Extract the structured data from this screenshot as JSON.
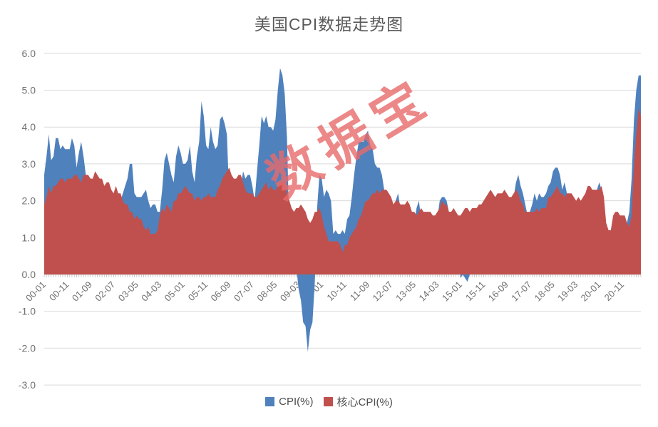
{
  "title": {
    "text": "美国CPI数据走势图"
  },
  "watermark": {
    "text": "数据宝",
    "color": "rgba(231,106,106,0.8)"
  },
  "legend": {
    "position": "bottom",
    "items": [
      {
        "label": "CPI(%)",
        "color": "#4f81bd"
      },
      {
        "label": "核心CPI(%)",
        "color": "#c0504d"
      }
    ]
  },
  "chart_data": {
    "type": "area",
    "title": "美国CPI数据走势图",
    "x_start_month": "2000-01",
    "x_end_month": "2021-07",
    "x_tick_interval_months": 10,
    "x_tick_labels": [
      "00-01",
      "00-11",
      "01-09",
      "02-07",
      "03-05",
      "04-03",
      "05-01",
      "05-11",
      "06-09",
      "07-07",
      "08-05",
      "09-03",
      "10-01",
      "10-11",
      "11-09",
      "12-07",
      "13-05",
      "14-03",
      "15-01",
      "15-11",
      "16-09",
      "17-07",
      "18-05",
      "19-03",
      "20-01",
      "20-11"
    ],
    "ylim": [
      -3.0,
      6.0
    ],
    "y_ticks": [
      6,
      5,
      4,
      3,
      2,
      1,
      0,
      -1,
      -2,
      -3
    ],
    "grid": true,
    "legend_position": "bottom",
    "grid_color": "#d9d9d9",
    "axis_color": "#bdbdbd",
    "axis_text_color": "#6f6f6f",
    "series": [
      {
        "name": "CPI(%)",
        "color": "#4f81bd",
        "values": [
          2.7,
          3.2,
          3.8,
          3.1,
          3.2,
          3.7,
          3.7,
          3.4,
          3.5,
          3.4,
          3.4,
          3.4,
          3.7,
          3.5,
          2.9,
          3.3,
          3.6,
          3.2,
          2.7,
          2.7,
          2.6,
          2.1,
          1.9,
          1.6,
          1.1,
          1.1,
          1.5,
          1.6,
          1.2,
          1.1,
          1.5,
          1.8,
          1.5,
          2.0,
          2.2,
          2.4,
          2.6,
          3.0,
          3.0,
          2.2,
          2.1,
          2.1,
          2.1,
          2.2,
          2.3,
          2.0,
          1.8,
          1.9,
          1.9,
          1.7,
          1.7,
          2.3,
          3.1,
          3.3,
          3.0,
          2.7,
          2.5,
          3.2,
          3.5,
          3.3,
          3.0,
          3.0,
          3.1,
          3.5,
          2.8,
          2.5,
          3.2,
          3.6,
          4.7,
          4.3,
          3.5,
          3.4,
          4.0,
          3.6,
          3.4,
          3.5,
          4.2,
          4.3,
          4.1,
          3.8,
          2.1,
          1.3,
          2.0,
          2.5,
          2.1,
          2.4,
          2.8,
          2.6,
          2.7,
          2.7,
          2.4,
          2.0,
          2.8,
          3.5,
          4.3,
          4.1,
          4.3,
          4.0,
          4.0,
          3.9,
          4.2,
          5.0,
          5.6,
          5.4,
          4.9,
          3.7,
          1.1,
          0.1,
          0.0,
          0.2,
          -0.4,
          -0.7,
          -1.3,
          -1.4,
          -2.1,
          -1.5,
          -1.3,
          -0.2,
          1.8,
          2.7,
          2.6,
          2.1,
          2.3,
          2.2,
          2.0,
          1.1,
          1.2,
          1.1,
          1.1,
          1.2,
          1.1,
          1.5,
          1.6,
          2.1,
          2.7,
          3.2,
          3.6,
          3.6,
          3.6,
          3.8,
          3.9,
          3.5,
          3.4,
          3.0,
          2.9,
          2.9,
          2.7,
          2.3,
          1.7,
          1.7,
          1.4,
          1.7,
          2.0,
          2.2,
          1.8,
          1.7,
          1.6,
          2.0,
          1.5,
          1.1,
          1.4,
          1.8,
          2.0,
          1.5,
          1.2,
          1.0,
          1.2,
          1.5,
          1.6,
          1.1,
          1.5,
          2.0,
          2.1,
          2.1,
          2.0,
          1.7,
          1.7,
          1.7,
          1.3,
          0.8,
          -0.1,
          0.0,
          -0.1,
          -0.2,
          0.0,
          0.1,
          0.2,
          0.2,
          0.0,
          0.2,
          0.5,
          0.7,
          1.4,
          1.0,
          0.9,
          1.1,
          1.0,
          1.0,
          0.8,
          1.1,
          1.5,
          1.6,
          1.7,
          2.1,
          2.5,
          2.7,
          2.4,
          2.2,
          1.9,
          1.6,
          1.7,
          1.9,
          2.2,
          2.0,
          2.2,
          2.1,
          2.1,
          2.2,
          2.4,
          2.5,
          2.8,
          2.9,
          2.9,
          2.7,
          2.3,
          2.5,
          2.2,
          1.9,
          1.6,
          1.5,
          1.9,
          2.0,
          1.8,
          1.6,
          1.8,
          1.7,
          1.7,
          1.8,
          2.1,
          2.3,
          2.5,
          2.3,
          1.5,
          0.3,
          0.1,
          0.6,
          1.0,
          1.3,
          1.4,
          1.2,
          1.2,
          1.4,
          1.4,
          1.7,
          2.6,
          4.2,
          5.0,
          5.4,
          5.4
        ]
      },
      {
        "name": "核心CPI(%)",
        "color": "#c0504d",
        "values": [
          1.9,
          2.1,
          2.4,
          2.2,
          2.4,
          2.4,
          2.5,
          2.6,
          2.6,
          2.5,
          2.6,
          2.6,
          2.6,
          2.7,
          2.7,
          2.6,
          2.5,
          2.7,
          2.7,
          2.7,
          2.6,
          2.6,
          2.8,
          2.7,
          2.6,
          2.6,
          2.4,
          2.5,
          2.5,
          2.3,
          2.2,
          2.4,
          2.2,
          2.2,
          2.0,
          1.9,
          1.9,
          1.7,
          1.7,
          1.5,
          1.6,
          1.5,
          1.5,
          1.3,
          1.2,
          1.3,
          1.1,
          1.1,
          1.1,
          1.2,
          1.6,
          1.8,
          1.7,
          1.9,
          1.8,
          1.7,
          2.0,
          2.0,
          2.2,
          2.2,
          2.3,
          2.4,
          2.3,
          2.2,
          2.2,
          2.0,
          2.1,
          2.1,
          2.0,
          2.1,
          2.1,
          2.2,
          2.1,
          2.1,
          2.1,
          2.3,
          2.4,
          2.6,
          2.7,
          2.8,
          2.9,
          2.7,
          2.6,
          2.6,
          2.7,
          2.7,
          2.5,
          2.3,
          2.2,
          2.2,
          2.2,
          2.1,
          2.1,
          2.2,
          2.3,
          2.4,
          2.5,
          2.3,
          2.4,
          2.3,
          2.3,
          2.4,
          2.5,
          2.5,
          2.5,
          2.2,
          2.0,
          1.8,
          1.7,
          1.8,
          1.8,
          1.9,
          1.8,
          1.7,
          1.5,
          1.4,
          1.5,
          1.7,
          1.7,
          1.8,
          1.6,
          1.3,
          1.1,
          0.9,
          0.9,
          0.9,
          0.9,
          0.9,
          0.8,
          0.6,
          0.8,
          0.8,
          1.0,
          1.1,
          1.2,
          1.3,
          1.5,
          1.6,
          1.8,
          2.0,
          2.0,
          2.1,
          2.2,
          2.2,
          2.3,
          2.2,
          2.3,
          2.3,
          2.3,
          2.2,
          2.1,
          1.9,
          2.0,
          2.0,
          1.9,
          1.9,
          1.9,
          2.0,
          1.9,
          1.7,
          1.7,
          1.6,
          1.7,
          1.8,
          1.7,
          1.7,
          1.7,
          1.7,
          1.6,
          1.6,
          1.7,
          1.8,
          2.0,
          1.9,
          1.9,
          1.7,
          1.7,
          1.8,
          1.7,
          1.6,
          1.6,
          1.7,
          1.8,
          1.8,
          1.7,
          1.8,
          1.8,
          1.8,
          1.9,
          1.9,
          2.0,
          2.1,
          2.2,
          2.3,
          2.2,
          2.1,
          2.2,
          2.2,
          2.2,
          2.3,
          2.2,
          2.1,
          2.1,
          2.2,
          2.3,
          2.2,
          2.0,
          1.9,
          1.7,
          1.7,
          1.7,
          1.7,
          1.7,
          1.8,
          1.7,
          1.8,
          1.8,
          1.8,
          2.1,
          2.1,
          2.2,
          2.3,
          2.4,
          2.2,
          2.2,
          2.1,
          2.2,
          2.2,
          2.2,
          2.1,
          2.0,
          2.1,
          2.0,
          2.1,
          2.2,
          2.4,
          2.4,
          2.3,
          2.3,
          2.3,
          2.3,
          2.4,
          2.1,
          1.4,
          1.2,
          1.2,
          1.6,
          1.7,
          1.7,
          1.6,
          1.6,
          1.6,
          1.4,
          1.3,
          1.6,
          3.0,
          3.8,
          4.5,
          4.3
        ]
      }
    ]
  }
}
